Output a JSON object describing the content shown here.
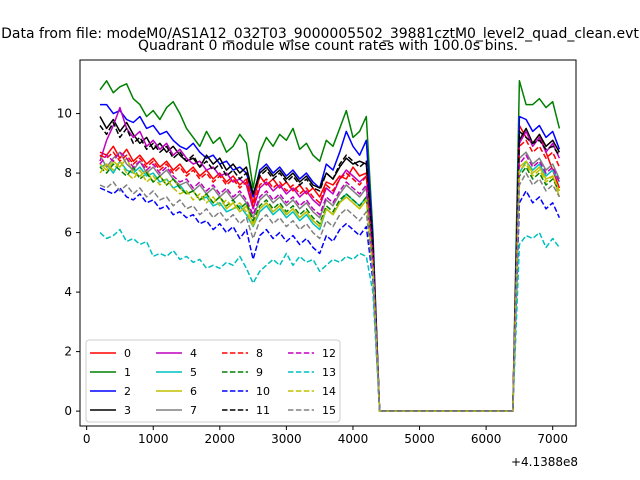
{
  "figure": {
    "supertitle": "Data from file: modeM0/AS1A12_032T03_9000005502_39881cztM0_level2_quad_clean.evt"
  },
  "chart_data": {
    "type": "line",
    "title": "Quadrant 0 module wise count rates with 100.0s bins.",
    "xlabel": "",
    "ylabel": "",
    "x_offset_label": "+4.1388e8",
    "xlim": [
      -100,
      7350
    ],
    "ylim": [
      -0.5,
      11.8
    ],
    "xticks": [
      0,
      1000,
      2000,
      3000,
      4000,
      5000,
      6000,
      7000
    ],
    "yticks": [
      0,
      2,
      4,
      6,
      8,
      10
    ],
    "grid": false,
    "legend": {
      "placement": "lower-left",
      "columns": 4
    },
    "x": [
      200,
      300,
      400,
      500,
      600,
      700,
      800,
      900,
      1000,
      1100,
      1200,
      1300,
      1400,
      1500,
      1600,
      1700,
      1800,
      1900,
      2000,
      2100,
      2200,
      2300,
      2400,
      2500,
      2600,
      2700,
      2800,
      2900,
      3000,
      3100,
      3200,
      3300,
      3400,
      3500,
      3600,
      3700,
      3800,
      3900,
      4000,
      4100,
      4200,
      4300,
      4400,
      4500,
      4600,
      4700,
      4800,
      4900,
      5000,
      5100,
      5200,
      5300,
      5400,
      5500,
      5600,
      5700,
      5800,
      5900,
      6000,
      6100,
      6200,
      6300,
      6400,
      6500,
      6600,
      6700,
      6800,
      6900,
      7000,
      7100
    ],
    "series": [
      {
        "name": "0",
        "color": "#ff0000",
        "dash": "solid",
        "values": [
          8.7,
          8.6,
          8.9,
          8.5,
          8.8,
          8.4,
          8.6,
          8.3,
          8.5,
          8.2,
          8.4,
          8.1,
          8.3,
          8.0,
          8.2,
          7.9,
          8.1,
          7.8,
          8.0,
          7.7,
          7.9,
          7.6,
          7.8,
          7.0,
          7.9,
          7.6,
          7.8,
          7.5,
          7.7,
          7.4,
          7.6,
          7.3,
          7.5,
          7.2,
          7.7,
          7.6,
          7.9,
          7.8,
          8.2,
          7.9,
          8.0,
          5.5,
          0,
          0,
          0,
          0,
          0,
          0,
          0,
          0,
          0,
          0,
          0,
          0,
          0,
          0,
          0,
          0,
          0,
          0,
          0,
          0,
          0,
          9.6,
          9.2,
          9.0,
          9.3,
          8.7,
          8.1,
          7.5
        ]
      },
      {
        "name": "1",
        "color": "#008000",
        "dash": "solid",
        "values": [
          10.8,
          11.1,
          10.7,
          10.9,
          11.0,
          10.5,
          10.3,
          9.9,
          10.1,
          9.8,
          10.2,
          10.4,
          10.0,
          9.5,
          9.2,
          8.9,
          9.4,
          9.0,
          9.2,
          8.7,
          8.9,
          9.3,
          9.0,
          7.5,
          8.7,
          9.2,
          8.9,
          9.3,
          9.1,
          9.5,
          8.8,
          9.0,
          8.6,
          8.4,
          9.1,
          8.9,
          9.5,
          10.1,
          9.2,
          9.4,
          9.9,
          6.0,
          0,
          0,
          0,
          0,
          0,
          0,
          0,
          0,
          0,
          0,
          0,
          0,
          0,
          0,
          0,
          0,
          0,
          0,
          0,
          0,
          0,
          11.1,
          10.3,
          10.3,
          10.5,
          10.2,
          10.4,
          9.5
        ]
      },
      {
        "name": "2",
        "color": "#0000ff",
        "dash": "solid",
        "values": [
          10.3,
          10.3,
          10.0,
          10.1,
          9.8,
          9.7,
          9.9,
          9.5,
          9.6,
          9.3,
          9.4,
          9.1,
          8.9,
          8.8,
          9.0,
          8.7,
          8.5,
          8.6,
          8.3,
          8.4,
          8.1,
          8.2,
          8.0,
          7.2,
          8.1,
          8.3,
          8.0,
          8.2,
          7.9,
          8.1,
          7.8,
          8.0,
          7.7,
          7.5,
          8.3,
          8.1,
          8.7,
          9.4,
          8.9,
          8.6,
          9.1,
          5.8,
          0,
          0,
          0,
          0,
          0,
          0,
          0,
          0,
          0,
          0,
          0,
          0,
          0,
          0,
          0,
          0,
          0,
          0,
          0,
          0,
          0,
          9.9,
          9.8,
          9.4,
          9.6,
          9.2,
          9.4,
          8.8
        ]
      },
      {
        "name": "3",
        "color": "#000000",
        "dash": "solid",
        "values": [
          9.9,
          9.5,
          9.8,
          9.4,
          9.7,
          9.3,
          9.0,
          9.2,
          8.8,
          9.0,
          8.7,
          8.9,
          8.6,
          8.4,
          8.5,
          8.2,
          8.6,
          8.3,
          8.5,
          8.1,
          8.3,
          8.0,
          8.2,
          7.3,
          8.0,
          8.2,
          7.9,
          8.1,
          7.8,
          8.0,
          7.7,
          7.9,
          7.6,
          7.5,
          8.0,
          7.8,
          8.2,
          8.5,
          8.3,
          8.4,
          8.3,
          5.6,
          0,
          0,
          0,
          0,
          0,
          0,
          0,
          0,
          0,
          0,
          0,
          0,
          0,
          0,
          0,
          0,
          0,
          0,
          0,
          0,
          0,
          9.1,
          9.5,
          9.0,
          9.3,
          8.9,
          9.1,
          8.7
        ]
      },
      {
        "name": "4",
        "color": "#bf00bf",
        "dash": "solid",
        "values": [
          8.4,
          9.1,
          9.6,
          10.2,
          9.5,
          9.2,
          9.4,
          8.9,
          9.1,
          8.8,
          9.0,
          8.6,
          8.8,
          8.5,
          8.3,
          8.4,
          8.1,
          8.2,
          7.9,
          8.0,
          7.7,
          7.8,
          7.6,
          6.8,
          7.5,
          7.7,
          7.4,
          7.6,
          7.3,
          7.5,
          7.2,
          7.4,
          7.1,
          6.9,
          7.5,
          7.3,
          7.8,
          8.1,
          7.9,
          7.7,
          7.9,
          5.3,
          0,
          0,
          0,
          0,
          0,
          0,
          0,
          0,
          0,
          0,
          0,
          0,
          0,
          0,
          0,
          0,
          0,
          0,
          0,
          0,
          0,
          9.0,
          9.4,
          8.9,
          9.2,
          8.7,
          9.0,
          8.5
        ]
      },
      {
        "name": "5",
        "color": "#00bfbf",
        "dash": "solid",
        "values": [
          8.2,
          8.3,
          8.0,
          8.4,
          8.1,
          8.0,
          8.2,
          7.9,
          8.0,
          7.7,
          7.8,
          7.5,
          7.6,
          7.3,
          7.4,
          7.1,
          7.2,
          6.9,
          7.0,
          6.7,
          6.8,
          6.9,
          6.6,
          6.2,
          6.7,
          6.9,
          6.6,
          6.8,
          6.5,
          6.7,
          6.4,
          6.6,
          6.3,
          6.1,
          6.8,
          6.6,
          7.0,
          7.3,
          7.1,
          6.9,
          7.2,
          4.9,
          0,
          0,
          0,
          0,
          0,
          0,
          0,
          0,
          0,
          0,
          0,
          0,
          0,
          0,
          0,
          0,
          0,
          0,
          0,
          0,
          0,
          8.0,
          8.4,
          8.1,
          8.3,
          7.9,
          8.1,
          7.7
        ]
      },
      {
        "name": "6",
        "color": "#bfbf00",
        "dash": "solid",
        "values": [
          8.3,
          8.1,
          8.4,
          8.2,
          8.5,
          8.0,
          7.9,
          8.1,
          7.7,
          7.9,
          7.6,
          7.8,
          7.5,
          7.3,
          7.4,
          7.1,
          7.3,
          7.0,
          7.2,
          6.8,
          7.0,
          6.7,
          6.9,
          6.3,
          6.8,
          7.0,
          6.7,
          6.9,
          6.6,
          6.8,
          6.5,
          6.7,
          6.4,
          6.2,
          6.8,
          6.6,
          7.0,
          7.2,
          7.0,
          6.8,
          7.1,
          4.8,
          0,
          0,
          0,
          0,
          0,
          0,
          0,
          0,
          0,
          0,
          0,
          0,
          0,
          0,
          0,
          0,
          0,
          0,
          0,
          0,
          0,
          8.2,
          8.4,
          8.0,
          8.2,
          7.8,
          7.9,
          7.2
        ]
      },
      {
        "name": "7",
        "color": "#808080",
        "dash": "solid",
        "values": [
          8.6,
          8.2,
          8.5,
          8.7,
          8.3,
          8.1,
          8.4,
          8.0,
          8.2,
          7.9,
          8.1,
          7.8,
          7.6,
          7.7,
          7.4,
          7.6,
          7.3,
          7.5,
          7.2,
          7.4,
          7.1,
          7.3,
          7.0,
          6.5,
          7.1,
          7.3,
          7.0,
          7.2,
          6.9,
          7.1,
          6.8,
          7.0,
          6.7,
          6.5,
          7.1,
          6.9,
          7.3,
          7.6,
          7.4,
          7.2,
          7.5,
          5.0,
          0,
          0,
          0,
          0,
          0,
          0,
          0,
          0,
          0,
          0,
          0,
          0,
          0,
          0,
          0,
          0,
          0,
          0,
          0,
          0,
          0,
          8.5,
          8.7,
          8.3,
          8.5,
          8.1,
          8.3,
          7.8
        ]
      },
      {
        "name": "8",
        "color": "#ff0000",
        "dash": "dashed",
        "values": [
          8.6,
          8.5,
          8.7,
          8.4,
          8.6,
          8.3,
          8.5,
          8.2,
          8.4,
          8.1,
          8.3,
          8.0,
          8.2,
          7.9,
          8.1,
          7.8,
          8.0,
          7.7,
          7.9,
          7.6,
          7.8,
          7.5,
          7.7,
          6.9,
          7.6,
          7.8,
          7.5,
          7.7,
          7.4,
          7.6,
          7.3,
          7.5,
          7.2,
          7.0,
          7.6,
          7.4,
          7.8,
          8.0,
          7.8,
          7.6,
          7.9,
          5.3,
          0,
          0,
          0,
          0,
          0,
          0,
          0,
          0,
          0,
          0,
          0,
          0,
          0,
          0,
          0,
          0,
          0,
          0,
          0,
          0,
          0,
          8.9,
          9.1,
          8.7,
          8.9,
          8.5,
          8.7,
          8.2
        ]
      },
      {
        "name": "9",
        "color": "#008000",
        "dash": "dashed",
        "values": [
          8.2,
          8.0,
          8.3,
          8.1,
          7.9,
          8.2,
          7.8,
          8.0,
          7.7,
          7.9,
          7.6,
          7.8,
          7.5,
          7.3,
          7.4,
          7.1,
          7.3,
          7.0,
          7.2,
          6.9,
          7.1,
          6.8,
          7.0,
          6.4,
          6.9,
          7.1,
          6.8,
          7.0,
          6.7,
          6.9,
          6.6,
          6.8,
          6.5,
          6.3,
          6.9,
          6.7,
          7.1,
          7.3,
          7.1,
          6.9,
          7.2,
          4.9,
          0,
          0,
          0,
          0,
          0,
          0,
          0,
          0,
          0,
          0,
          0,
          0,
          0,
          0,
          0,
          0,
          0,
          0,
          0,
          0,
          0,
          7.9,
          8.2,
          7.8,
          8.0,
          7.6,
          7.8,
          7.4
        ]
      },
      {
        "name": "10",
        "color": "#0000ff",
        "dash": "dashed",
        "values": [
          7.5,
          7.4,
          7.3,
          7.5,
          7.2,
          7.1,
          7.3,
          7.0,
          7.1,
          6.8,
          6.9,
          6.6,
          6.7,
          6.5,
          6.6,
          6.3,
          6.4,
          6.1,
          6.3,
          6.0,
          6.2,
          5.8,
          6.1,
          5.1,
          5.9,
          6.1,
          5.8,
          6.0,
          5.7,
          5.9,
          5.6,
          5.8,
          5.5,
          5.3,
          5.9,
          5.7,
          6.1,
          6.3,
          6.1,
          5.9,
          6.2,
          4.4,
          0,
          0,
          0,
          0,
          0,
          0,
          0,
          0,
          0,
          0,
          0,
          0,
          0,
          0,
          0,
          0,
          0,
          0,
          0,
          0,
          0,
          7.0,
          7.4,
          7.0,
          7.2,
          6.8,
          7.0,
          6.5
        ]
      },
      {
        "name": "11",
        "color": "#000000",
        "dash": "dashed",
        "values": [
          9.6,
          9.3,
          9.7,
          9.2,
          9.5,
          9.0,
          9.2,
          8.8,
          9.0,
          8.7,
          8.9,
          8.5,
          8.7,
          8.4,
          8.6,
          8.2,
          8.4,
          8.1,
          8.3,
          7.9,
          8.1,
          7.8,
          8.0,
          7.3,
          7.9,
          8.1,
          7.8,
          8.0,
          7.7,
          7.9,
          7.6,
          7.8,
          7.5,
          7.4,
          8.0,
          7.8,
          8.3,
          8.6,
          8.4,
          8.2,
          8.4,
          5.5,
          0,
          0,
          0,
          0,
          0,
          0,
          0,
          0,
          0,
          0,
          0,
          0,
          0,
          0,
          0,
          0,
          0,
          0,
          0,
          0,
          0,
          9.4,
          9.2,
          9.0,
          9.1,
          8.8,
          8.9,
          8.6
        ]
      },
      {
        "name": "12",
        "color": "#bf00bf",
        "dash": "dashed",
        "values": [
          8.3,
          8.6,
          8.4,
          8.7,
          8.5,
          8.2,
          8.4,
          8.1,
          8.3,
          8.0,
          8.2,
          7.9,
          7.7,
          7.8,
          7.5,
          7.7,
          7.4,
          7.6,
          7.3,
          7.5,
          7.2,
          7.4,
          7.1,
          6.6,
          7.2,
          7.4,
          7.1,
          7.3,
          7.0,
          7.2,
          6.9,
          7.1,
          6.8,
          6.6,
          7.2,
          7.0,
          7.4,
          7.7,
          7.5,
          7.3,
          7.6,
          5.1,
          0,
          0,
          0,
          0,
          0,
          0,
          0,
          0,
          0,
          0,
          0,
          0,
          0,
          0,
          0,
          0,
          0,
          0,
          0,
          0,
          0,
          8.3,
          8.6,
          8.2,
          8.4,
          8.0,
          8.2,
          7.7
        ]
      },
      {
        "name": "13",
        "color": "#00bfbf",
        "dash": "dashed",
        "values": [
          6.0,
          5.8,
          5.9,
          6.1,
          5.7,
          5.8,
          5.6,
          5.7,
          5.2,
          5.3,
          5.2,
          5.4,
          5.1,
          5.2,
          5.0,
          5.1,
          4.8,
          4.9,
          4.8,
          5.0,
          4.9,
          5.2,
          4.8,
          4.3,
          4.7,
          4.9,
          5.1,
          4.9,
          5.3,
          4.9,
          5.2,
          5.0,
          5.1,
          4.7,
          4.9,
          5.1,
          5.0,
          5.2,
          5.1,
          5.3,
          5.2,
          4.0,
          0,
          0,
          0,
          0,
          0,
          0,
          0,
          0,
          0,
          0,
          0,
          0,
          0,
          0,
          0,
          0,
          0,
          0,
          0,
          0,
          0,
          5.6,
          5.9,
          5.8,
          6.0,
          5.5,
          5.8,
          5.5
        ]
      },
      {
        "name": "14",
        "color": "#bfbf00",
        "dash": "dashed",
        "values": [
          8.0,
          8.3,
          8.1,
          8.4,
          8.0,
          7.8,
          8.1,
          7.7,
          7.9,
          7.6,
          7.8,
          7.5,
          7.3,
          7.4,
          7.1,
          7.3,
          7.0,
          7.2,
          6.9,
          7.1,
          6.8,
          7.0,
          6.7,
          6.2,
          6.8,
          7.0,
          6.7,
          6.9,
          6.6,
          6.8,
          6.5,
          6.7,
          6.4,
          6.2,
          6.8,
          6.6,
          7.0,
          7.2,
          7.0,
          6.8,
          7.1,
          4.8,
          0,
          0,
          0,
          0,
          0,
          0,
          0,
          0,
          0,
          0,
          0,
          0,
          0,
          0,
          0,
          0,
          0,
          0,
          0,
          0,
          0,
          8.1,
          8.3,
          7.9,
          8.1,
          7.7,
          7.9,
          7.4
        ]
      },
      {
        "name": "15",
        "color": "#808080",
        "dash": "dashed",
        "values": [
          7.6,
          7.5,
          7.7,
          7.4,
          7.6,
          7.3,
          7.5,
          7.2,
          7.4,
          7.1,
          7.2,
          6.9,
          7.1,
          6.8,
          6.9,
          6.6,
          6.8,
          6.5,
          6.7,
          6.4,
          6.6,
          6.3,
          6.5,
          5.8,
          6.4,
          6.6,
          6.3,
          6.5,
          6.2,
          6.4,
          6.1,
          6.3,
          6.0,
          5.8,
          6.4,
          6.2,
          6.6,
          6.8,
          6.6,
          6.4,
          6.7,
          4.6,
          0,
          0,
          0,
          0,
          0,
          0,
          0,
          0,
          0,
          0,
          0,
          0,
          0,
          0,
          0,
          0,
          0,
          0,
          0,
          0,
          0,
          7.6,
          8.0,
          7.6,
          7.8,
          7.4,
          7.6,
          7.2
        ]
      }
    ]
  }
}
